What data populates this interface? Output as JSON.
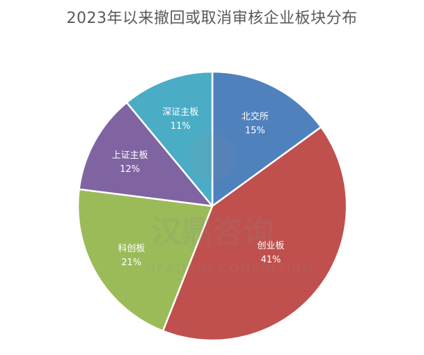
{
  "chart_data": {
    "type": "pie",
    "title": "2023年以来撤回或取消审核企业板块分布",
    "slices": [
      {
        "name": "北交所",
        "value": 15,
        "label": "15%",
        "color": "#4f81bd"
      },
      {
        "name": "创业板",
        "value": 41,
        "label": "41%",
        "color": "#c0504d"
      },
      {
        "name": "科创板",
        "value": 21,
        "label": "21%",
        "color": "#9bbb59"
      },
      {
        "name": "上证主板",
        "value": 12,
        "label": "12%",
        "color": "#8064a2"
      },
      {
        "name": "深证主板",
        "value": 11,
        "label": "11%",
        "color": "#4bacc6"
      }
    ],
    "legend": "none",
    "data_labels": "inside"
  },
  "watermark": {
    "main": "汉鼎咨询",
    "sub": "HEADING CONSULTING"
  }
}
